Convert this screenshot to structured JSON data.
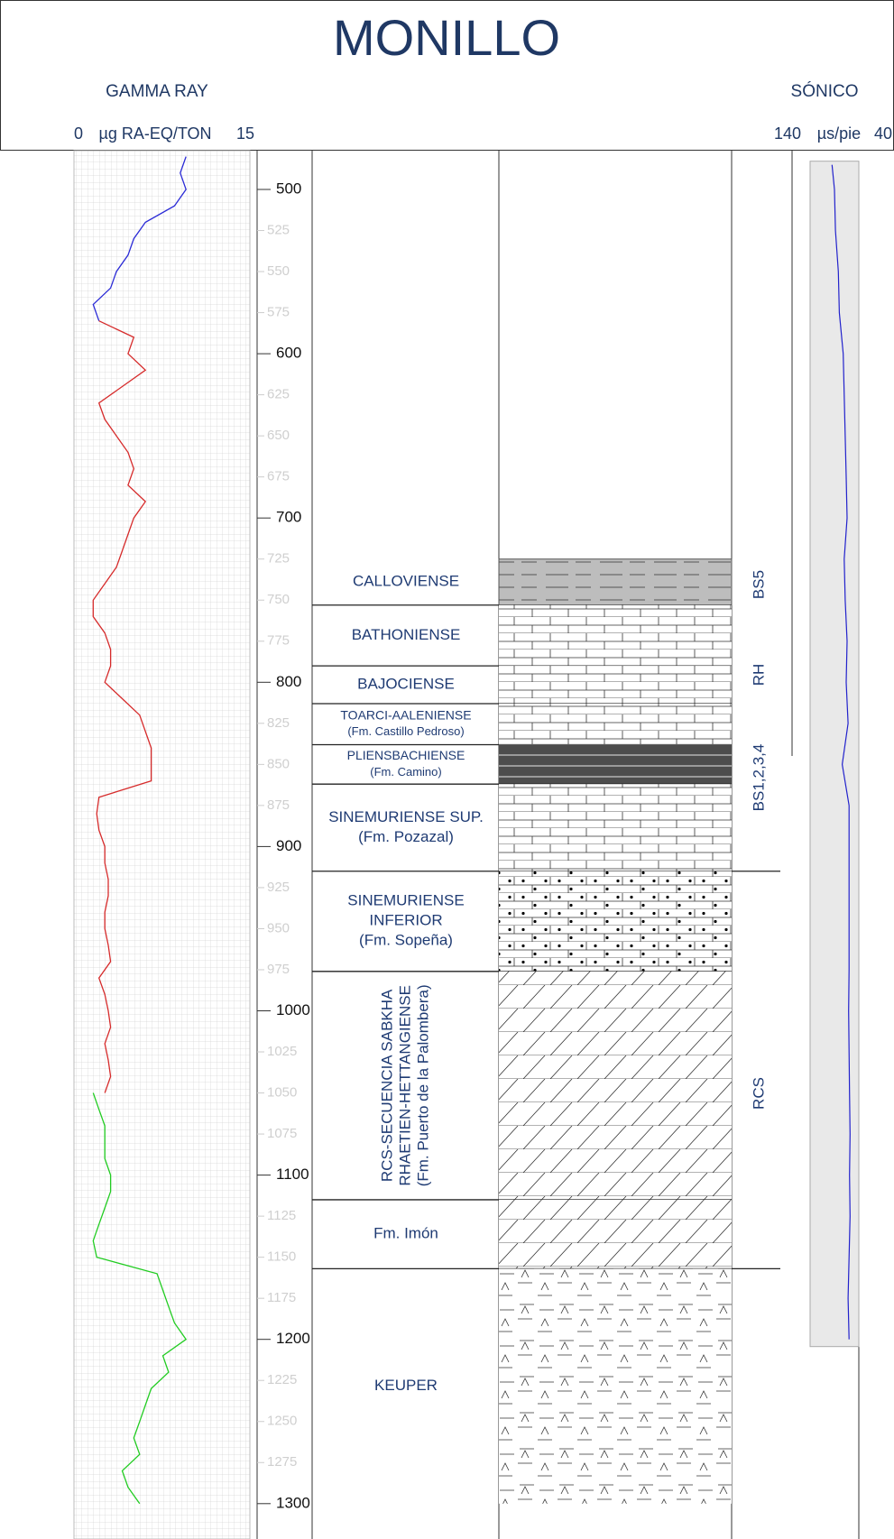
{
  "title": "MONILLO",
  "gamma_ray": {
    "title": "GAMMA RAY",
    "unit": "µg RA-EQ/TON",
    "xlim": [
      0,
      15
    ],
    "series": [
      {
        "color": "#2b2bd6",
        "depth": [
          480,
          490,
          500,
          510,
          520,
          530,
          540,
          550,
          560,
          570,
          580
        ],
        "values": [
          9.5,
          9,
          9.5,
          8.5,
          6,
          5,
          4.5,
          3.5,
          3,
          1.5,
          2
        ]
      },
      {
        "color": "#d62b2b",
        "depth": [
          580,
          590,
          600,
          610,
          620,
          630,
          640,
          650,
          660,
          670,
          680,
          690,
          700,
          710,
          720,
          730,
          740,
          750,
          760,
          770,
          780,
          790,
          800,
          810,
          820,
          830,
          840,
          850,
          860,
          870,
          880,
          890,
          900,
          910,
          920,
          930,
          940,
          950,
          960,
          970,
          980,
          990,
          1000,
          1010,
          1020,
          1030,
          1040,
          1050
        ],
        "values": [
          2,
          5,
          4.5,
          6,
          4,
          2,
          2.5,
          3.5,
          4.5,
          5,
          4.5,
          6,
          5,
          4.5,
          4,
          3.5,
          2.5,
          1.5,
          1.5,
          2.5,
          3,
          3,
          2.5,
          4,
          5.5,
          6,
          6.5,
          6.5,
          6.5,
          2,
          1.8,
          2,
          2.5,
          2.5,
          2.8,
          2.8,
          2.5,
          2.5,
          2.8,
          3,
          2,
          2.5,
          2.8,
          3,
          2.5,
          2.8,
          3,
          2.5
        ]
      },
      {
        "color": "#22cc22",
        "depth": [
          1050,
          1060,
          1070,
          1080,
          1090,
          1100,
          1110,
          1120,
          1130,
          1140,
          1150,
          1160,
          1170,
          1180,
          1190,
          1200,
          1210,
          1220,
          1230,
          1240,
          1250,
          1260,
          1270,
          1280,
          1290,
          1300
        ],
        "values": [
          1.5,
          2,
          2.5,
          2.5,
          2.5,
          3,
          3,
          2.5,
          2,
          1.5,
          1.8,
          7,
          7.5,
          8,
          8.5,
          9.5,
          7.5,
          8,
          6.5,
          6,
          5.5,
          5,
          5.5,
          4,
          4.5,
          5.5
        ]
      }
    ]
  },
  "sonic": {
    "title": "SÓNICO",
    "unit": "µs/pie",
    "xlim": [
      140,
      40
    ],
    "color": "#2222cc",
    "depth": [
      485,
      500,
      525,
      550,
      575,
      600,
      625,
      650,
      675,
      700,
      725,
      750,
      775,
      800,
      825,
      850,
      875,
      900,
      925,
      950,
      975,
      1000,
      1025,
      1050,
      1075,
      1100,
      1125,
      1150,
      1175,
      1200
    ],
    "values": [
      95,
      90,
      88,
      82,
      80,
      72,
      70,
      68,
      66,
      64,
      70,
      68,
      64,
      66,
      62,
      74,
      60,
      60,
      60,
      60,
      60,
      61,
      60,
      59,
      58,
      59,
      58,
      60,
      62,
      60
    ]
  },
  "depth_axis": {
    "major_ticks": [
      500,
      600,
      700,
      800,
      900,
      1000,
      1100,
      1200,
      1300
    ],
    "minor_ticks": [
      525,
      550,
      575,
      625,
      650,
      675,
      725,
      750,
      775,
      825,
      850,
      875,
      925,
      950,
      975,
      1025,
      1050,
      1075,
      1125,
      1150,
      1175,
      1225,
      1250,
      1275
    ]
  },
  "formations": [
    {
      "lines": [
        "CALLOVIENSE"
      ],
      "top": 725,
      "base": 753
    },
    {
      "lines": [
        "BATHONIENSE"
      ],
      "top": 753,
      "base": 790
    },
    {
      "lines": [
        "BAJOCIENSE"
      ],
      "top": 790,
      "base": 813
    },
    {
      "lines": [
        "TOARCI-AALENIENSE",
        "(Fm. Castillo Pedroso)"
      ],
      "top": 813,
      "base": 838
    },
    {
      "lines": [
        "PLIENSBACHIENSE",
        "(Fm. Camino)"
      ],
      "top": 838,
      "base": 862
    },
    {
      "lines": [
        "SINEMURIENSE SUP.",
        "(Fm. Pozazal)"
      ],
      "top": 862,
      "base": 915
    },
    {
      "lines": [
        "SINEMURIENSE",
        "INFERIOR",
        "(Fm. Sopeña)"
      ],
      "top": 915,
      "base": 976
    },
    {
      "lines": [
        "RCS-SECUENCIA SABKHA",
        "RHAETIEN-HETTANGIENSE",
        "(Fm. Puerto de la Palombera)"
      ],
      "top": 976,
      "base": 1115,
      "orientation": "vertical"
    },
    {
      "lines": [
        "Fm. Imón"
      ],
      "top": 1115,
      "base": 1157
    },
    {
      "lines": [
        "KEUPER"
      ],
      "top": 1157,
      "base": 1300
    }
  ],
  "sequences": [
    "BS5",
    "RH",
    "BS1,2,3,4",
    "RCS"
  ]
}
